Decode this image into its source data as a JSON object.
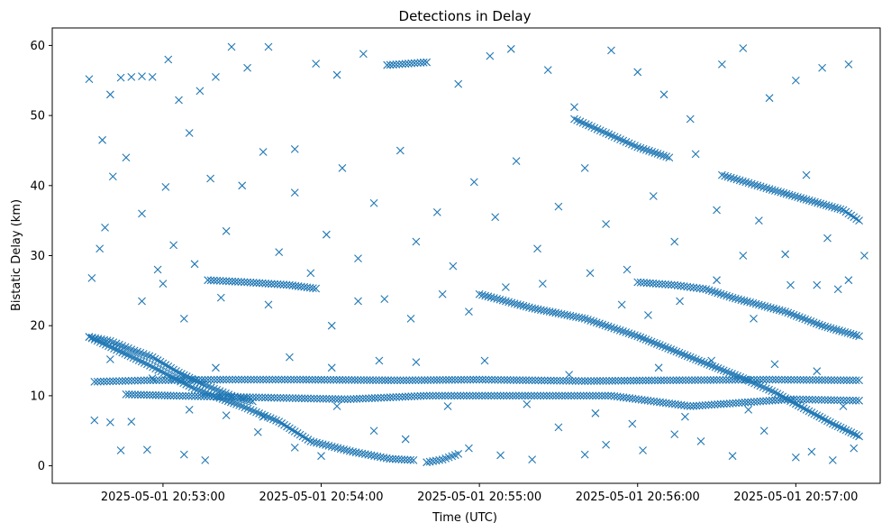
{
  "chart_data": {
    "type": "scatter",
    "title": "Detections in Delay",
    "xlabel": "Time (UTC)",
    "ylabel": "Bistatic Delay (km)",
    "marker": "x",
    "color": "#1f77b4",
    "xlim": [
      "2025-05-01 20:52:18",
      "2025-05-01 20:57:32"
    ],
    "ylim": [
      -2.5,
      62.5
    ],
    "xticks": [
      {
        "t": "2025-05-01 20:53:00",
        "label": "2025-05-01 20:53:00"
      },
      {
        "t": "2025-05-01 20:54:00",
        "label": "2025-05-01 20:54:00"
      },
      {
        "t": "2025-05-01 20:55:00",
        "label": "2025-05-01 20:55:00"
      },
      {
        "t": "2025-05-01 20:56:00",
        "label": "2025-05-01 20:56:00"
      },
      {
        "t": "2025-05-01 20:57:00",
        "label": "2025-05-01 20:57:00"
      }
    ],
    "yticks": [
      0,
      10,
      20,
      30,
      40,
      50,
      60
    ],
    "grid": false,
    "series": [
      {
        "name": "",
        "tracks": [
          {
            "points": [
              [
                "2025-05-01 20:52:32",
                18.4
              ],
              [
                "2025-05-01 20:52:54",
                14.5
              ],
              [
                "2025-05-01 20:53:12",
                11.0
              ],
              [
                "2025-05-01 20:53:30",
                8.5
              ],
              [
                "2025-05-01 20:53:44",
                6.3
              ],
              [
                "2025-05-01 20:53:56",
                3.5
              ],
              [
                "2025-05-01 20:54:12",
                2.0
              ],
              [
                "2025-05-01 20:54:26",
                1.0
              ],
              [
                "2025-05-01 20:54:35",
                0.8
              ]
            ]
          },
          {
            "points": [
              [
                "2025-05-01 20:54:40",
                0.5
              ],
              [
                "2025-05-01 20:54:46",
                0.9
              ],
              [
                "2025-05-01 20:54:52",
                1.7
              ]
            ]
          },
          {
            "points": [
              [
                "2025-05-01 20:52:32",
                18.4
              ],
              [
                "2025-05-01 20:52:40",
                17.8
              ],
              [
                "2025-05-01 20:52:48",
                16.6
              ],
              [
                "2025-05-01 20:52:56",
                15.5
              ],
              [
                "2025-05-01 20:53:06",
                13.3
              ],
              [
                "2025-05-01 20:53:16",
                11.5
              ],
              [
                "2025-05-01 20:53:26",
                10.0
              ],
              [
                "2025-05-01 20:53:34",
                9.2
              ]
            ]
          },
          {
            "points": [
              [
                "2025-05-01 20:53:17",
                26.5
              ],
              [
                "2025-05-01 20:53:32",
                26.2
              ],
              [
                "2025-05-01 20:53:48",
                25.8
              ],
              [
                "2025-05-01 20:53:58",
                25.3
              ]
            ]
          },
          {
            "points": [
              [
                "2025-05-01 20:54:25",
                57.2
              ],
              [
                "2025-05-01 20:54:40",
                57.6
              ]
            ]
          },
          {
            "points": [
              [
                "2025-05-01 20:55:00",
                24.5
              ],
              [
                "2025-05-01 20:55:20",
                22.5
              ],
              [
                "2025-05-01 20:55:40",
                21.0
              ],
              [
                "2025-05-01 20:56:00",
                18.5
              ],
              [
                "2025-05-01 20:56:20",
                15.5
              ],
              [
                "2025-05-01 20:56:40",
                12.5
              ],
              [
                "2025-05-01 20:56:52",
                10.5
              ],
              [
                "2025-05-01 20:57:04",
                8.0
              ],
              [
                "2025-05-01 20:57:14",
                6.0
              ],
              [
                "2025-05-01 20:57:24",
                4.2
              ]
            ]
          },
          {
            "points": [
              [
                "2025-05-01 20:55:36",
                49.5
              ],
              [
                "2025-05-01 20:55:48",
                47.5
              ],
              [
                "2025-05-01 20:56:00",
                45.5
              ],
              [
                "2025-05-01 20:56:12",
                44.0
              ]
            ]
          },
          {
            "points": [
              [
                "2025-05-01 20:56:32",
                41.5
              ],
              [
                "2025-05-01 20:56:50",
                39.5
              ],
              [
                "2025-05-01 20:57:04",
                38.0
              ],
              [
                "2025-05-01 20:57:18",
                36.5
              ],
              [
                "2025-05-01 20:57:24",
                35.0
              ]
            ]
          },
          {
            "points": [
              [
                "2025-05-01 20:56:00",
                26.2
              ],
              [
                "2025-05-01 20:56:14",
                25.8
              ],
              [
                "2025-05-01 20:56:26",
                25.2
              ],
              [
                "2025-05-01 20:56:36",
                24.0
              ],
              [
                "2025-05-01 20:56:56",
                22.0
              ],
              [
                "2025-05-01 20:57:10",
                20.0
              ],
              [
                "2025-05-01 20:57:24",
                18.5
              ]
            ]
          },
          {
            "points": [
              [
                "2025-05-01 20:52:34",
                12.0
              ],
              [
                "2025-05-01 20:52:54",
                12.2
              ],
              [
                "2025-05-01 20:53:24",
                12.3
              ],
              [
                "2025-05-01 20:53:52",
                12.3
              ],
              [
                "2025-05-01 20:54:30",
                12.2
              ],
              [
                "2025-05-01 20:55:00",
                12.3
              ],
              [
                "2025-05-01 20:55:40",
                12.1
              ],
              [
                "2025-05-01 20:56:10",
                12.2
              ],
              [
                "2025-05-01 20:56:50",
                12.3
              ],
              [
                "2025-05-01 20:57:24",
                12.2
              ]
            ]
          },
          {
            "points": [
              [
                "2025-05-01 20:52:46",
                10.2
              ],
              [
                "2025-05-01 20:53:04",
                10.0
              ],
              [
                "2025-05-01 20:54:10",
                9.5
              ],
              [
                "2025-05-01 20:54:40",
                10.0
              ],
              [
                "2025-05-01 20:55:50",
                10.0
              ],
              [
                "2025-05-01 20:56:20",
                8.5
              ],
              [
                "2025-05-01 20:56:58",
                9.5
              ],
              [
                "2025-05-01 20:57:24",
                9.3
              ]
            ]
          }
        ],
        "scatter": [
          [
            "2025-05-01 20:52:32",
            55.2
          ],
          [
            "2025-05-01 20:52:37",
            46.5
          ],
          [
            "2025-05-01 20:52:40",
            53.0
          ],
          [
            "2025-05-01 20:52:44",
            55.4
          ],
          [
            "2025-05-01 20:52:48",
            55.5
          ],
          [
            "2025-05-01 20:52:52",
            55.6
          ],
          [
            "2025-05-01 20:52:56",
            55.5
          ],
          [
            "2025-05-01 20:53:02",
            58.0
          ],
          [
            "2025-05-01 20:53:06",
            52.2
          ],
          [
            "2025-05-01 20:53:10",
            47.5
          ],
          [
            "2025-05-01 20:53:14",
            53.5
          ],
          [
            "2025-05-01 20:53:20",
            55.5
          ],
          [
            "2025-05-01 20:53:26",
            59.8
          ],
          [
            "2025-05-01 20:53:32",
            56.8
          ],
          [
            "2025-05-01 20:53:40",
            59.8
          ],
          [
            "2025-05-01 20:53:50",
            45.2
          ],
          [
            "2025-05-01 20:53:58",
            57.4
          ],
          [
            "2025-05-01 20:54:06",
            55.8
          ],
          [
            "2025-05-01 20:54:16",
            58.8
          ],
          [
            "2025-05-01 20:54:52",
            54.5
          ],
          [
            "2025-05-01 20:55:04",
            58.5
          ],
          [
            "2025-05-01 20:55:12",
            59.5
          ],
          [
            "2025-05-01 20:55:26",
            56.5
          ],
          [
            "2025-05-01 20:55:36",
            51.2
          ],
          [
            "2025-05-01 20:55:50",
            59.3
          ],
          [
            "2025-05-01 20:56:00",
            56.2
          ],
          [
            "2025-05-01 20:56:10",
            53.0
          ],
          [
            "2025-05-01 20:56:20",
            49.5
          ],
          [
            "2025-05-01 20:56:32",
            57.3
          ],
          [
            "2025-05-01 20:56:40",
            59.6
          ],
          [
            "2025-05-01 20:56:50",
            52.5
          ],
          [
            "2025-05-01 20:57:00",
            55.0
          ],
          [
            "2025-05-01 20:57:10",
            56.8
          ],
          [
            "2025-05-01 20:57:20",
            57.3
          ],
          [
            "2025-05-01 20:52:33",
            26.8
          ],
          [
            "2025-05-01 20:52:36",
            31.0
          ],
          [
            "2025-05-01 20:52:38",
            34.0
          ],
          [
            "2025-05-01 20:52:41",
            41.3
          ],
          [
            "2025-05-01 20:52:46",
            44.0
          ],
          [
            "2025-05-01 20:52:52",
            36.0
          ],
          [
            "2025-05-01 20:52:58",
            28.0
          ],
          [
            "2025-05-01 20:53:01",
            39.8
          ],
          [
            "2025-05-01 20:53:04",
            31.5
          ],
          [
            "2025-05-01 20:53:12",
            28.8
          ],
          [
            "2025-05-01 20:53:18",
            41.0
          ],
          [
            "2025-05-01 20:53:24",
            33.5
          ],
          [
            "2025-05-01 20:53:30",
            40.0
          ],
          [
            "2025-05-01 20:53:38",
            44.8
          ],
          [
            "2025-05-01 20:53:44",
            30.5
          ],
          [
            "2025-05-01 20:53:50",
            39.0
          ],
          [
            "2025-05-01 20:53:56",
            27.5
          ],
          [
            "2025-05-01 20:54:02",
            33.0
          ],
          [
            "2025-05-01 20:54:08",
            42.5
          ],
          [
            "2025-05-01 20:54:14",
            29.6
          ],
          [
            "2025-05-01 20:54:20",
            37.5
          ],
          [
            "2025-05-01 20:54:30",
            45.0
          ],
          [
            "2025-05-01 20:54:36",
            32.0
          ],
          [
            "2025-05-01 20:54:44",
            36.2
          ],
          [
            "2025-05-01 20:54:50",
            28.5
          ],
          [
            "2025-05-01 20:54:58",
            40.5
          ],
          [
            "2025-05-01 20:55:06",
            35.5
          ],
          [
            "2025-05-01 20:55:14",
            43.5
          ],
          [
            "2025-05-01 20:55:22",
            31.0
          ],
          [
            "2025-05-01 20:55:30",
            37.0
          ],
          [
            "2025-05-01 20:55:40",
            42.5
          ],
          [
            "2025-05-01 20:55:48",
            34.5
          ],
          [
            "2025-05-01 20:55:56",
            28.0
          ],
          [
            "2025-05-01 20:56:06",
            38.5
          ],
          [
            "2025-05-01 20:56:14",
            32.0
          ],
          [
            "2025-05-01 20:56:22",
            44.5
          ],
          [
            "2025-05-01 20:56:30",
            36.5
          ],
          [
            "2025-05-01 20:56:40",
            30.0
          ],
          [
            "2025-05-01 20:56:46",
            35.0
          ],
          [
            "2025-05-01 20:56:56",
            30.2
          ],
          [
            "2025-05-01 20:57:04",
            41.5
          ],
          [
            "2025-05-01 20:57:12",
            32.5
          ],
          [
            "2025-05-01 20:57:20",
            26.5
          ],
          [
            "2025-05-01 20:57:26",
            30.0
          ],
          [
            "2025-05-01 20:52:34",
            6.5
          ],
          [
            "2025-05-01 20:52:40",
            6.2
          ],
          [
            "2025-05-01 20:52:44",
            2.2
          ],
          [
            "2025-05-01 20:52:48",
            6.3
          ],
          [
            "2025-05-01 20:52:54",
            2.3
          ],
          [
            "2025-05-01 20:53:08",
            1.6
          ],
          [
            "2025-05-01 20:53:16",
            0.8
          ],
          [
            "2025-05-01 20:53:24",
            7.2
          ],
          [
            "2025-05-01 20:53:36",
            4.8
          ],
          [
            "2025-05-01 20:53:50",
            2.6
          ],
          [
            "2025-05-01 20:54:00",
            1.4
          ],
          [
            "2025-05-01 20:54:06",
            8.5
          ],
          [
            "2025-05-01 20:54:20",
            5.0
          ],
          [
            "2025-05-01 20:54:32",
            3.8
          ],
          [
            "2025-05-01 20:54:56",
            2.5
          ],
          [
            "2025-05-01 20:55:08",
            1.5
          ],
          [
            "2025-05-01 20:55:20",
            0.9
          ],
          [
            "2025-05-01 20:55:30",
            5.5
          ],
          [
            "2025-05-01 20:55:40",
            1.6
          ],
          [
            "2025-05-01 20:55:48",
            3.0
          ],
          [
            "2025-05-01 20:56:02",
            2.2
          ],
          [
            "2025-05-01 20:56:14",
            4.5
          ],
          [
            "2025-05-01 20:56:24",
            3.5
          ],
          [
            "2025-05-01 20:56:36",
            1.4
          ],
          [
            "2025-05-01 20:56:48",
            5.0
          ],
          [
            "2025-05-01 20:57:00",
            1.2
          ],
          [
            "2025-05-01 20:57:06",
            2.0
          ],
          [
            "2025-05-01 20:57:14",
            0.8
          ],
          [
            "2025-05-01 20:57:22",
            2.5
          ],
          [
            "2025-05-01 20:52:40",
            15.2
          ],
          [
            "2025-05-01 20:52:56",
            12.5
          ],
          [
            "2025-05-01 20:53:10",
            8.0
          ],
          [
            "2025-05-01 20:53:20",
            14.0
          ],
          [
            "2025-05-01 20:53:38",
            7.0
          ],
          [
            "2025-05-01 20:53:48",
            15.5
          ],
          [
            "2025-05-01 20:54:04",
            14.0
          ],
          [
            "2025-05-01 20:54:22",
            15.0
          ],
          [
            "2025-05-01 20:54:36",
            14.8
          ],
          [
            "2025-05-01 20:54:48",
            8.5
          ],
          [
            "2025-05-01 20:55:02",
            15.0
          ],
          [
            "2025-05-01 20:55:18",
            8.8
          ],
          [
            "2025-05-01 20:55:34",
            13.0
          ],
          [
            "2025-05-01 20:55:44",
            7.5
          ],
          [
            "2025-05-01 20:55:58",
            6.0
          ],
          [
            "2025-05-01 20:56:08",
            14.0
          ],
          [
            "2025-05-01 20:56:18",
            7.0
          ],
          [
            "2025-05-01 20:56:28",
            15.0
          ],
          [
            "2025-05-01 20:56:42",
            8.0
          ],
          [
            "2025-05-01 20:56:52",
            14.5
          ],
          [
            "2025-05-01 20:57:08",
            13.5
          ],
          [
            "2025-05-01 20:57:18",
            8.5
          ],
          [
            "2025-05-01 20:52:52",
            23.5
          ],
          [
            "2025-05-01 20:53:00",
            26.0
          ],
          [
            "2025-05-01 20:53:08",
            21.0
          ],
          [
            "2025-05-01 20:53:22",
            24.0
          ],
          [
            "2025-05-01 20:53:40",
            23.0
          ],
          [
            "2025-05-01 20:54:04",
            20.0
          ],
          [
            "2025-05-01 20:54:14",
            23.5
          ],
          [
            "2025-05-01 20:54:24",
            23.8
          ],
          [
            "2025-05-01 20:54:34",
            21.0
          ],
          [
            "2025-05-01 20:54:46",
            24.5
          ],
          [
            "2025-05-01 20:54:56",
            22.0
          ],
          [
            "2025-05-01 20:55:10",
            25.5
          ],
          [
            "2025-05-01 20:55:24",
            26.0
          ],
          [
            "2025-05-01 20:55:42",
            27.5
          ],
          [
            "2025-05-01 20:55:54",
            23.0
          ],
          [
            "2025-05-01 20:56:04",
            21.5
          ],
          [
            "2025-05-01 20:56:16",
            23.5
          ],
          [
            "2025-05-01 20:56:30",
            26.5
          ],
          [
            "2025-05-01 20:56:44",
            21.0
          ],
          [
            "2025-05-01 20:56:58",
            25.8
          ],
          [
            "2025-05-01 20:57:08",
            25.8
          ],
          [
            "2025-05-01 20:57:16",
            25.2
          ]
        ]
      }
    ]
  }
}
